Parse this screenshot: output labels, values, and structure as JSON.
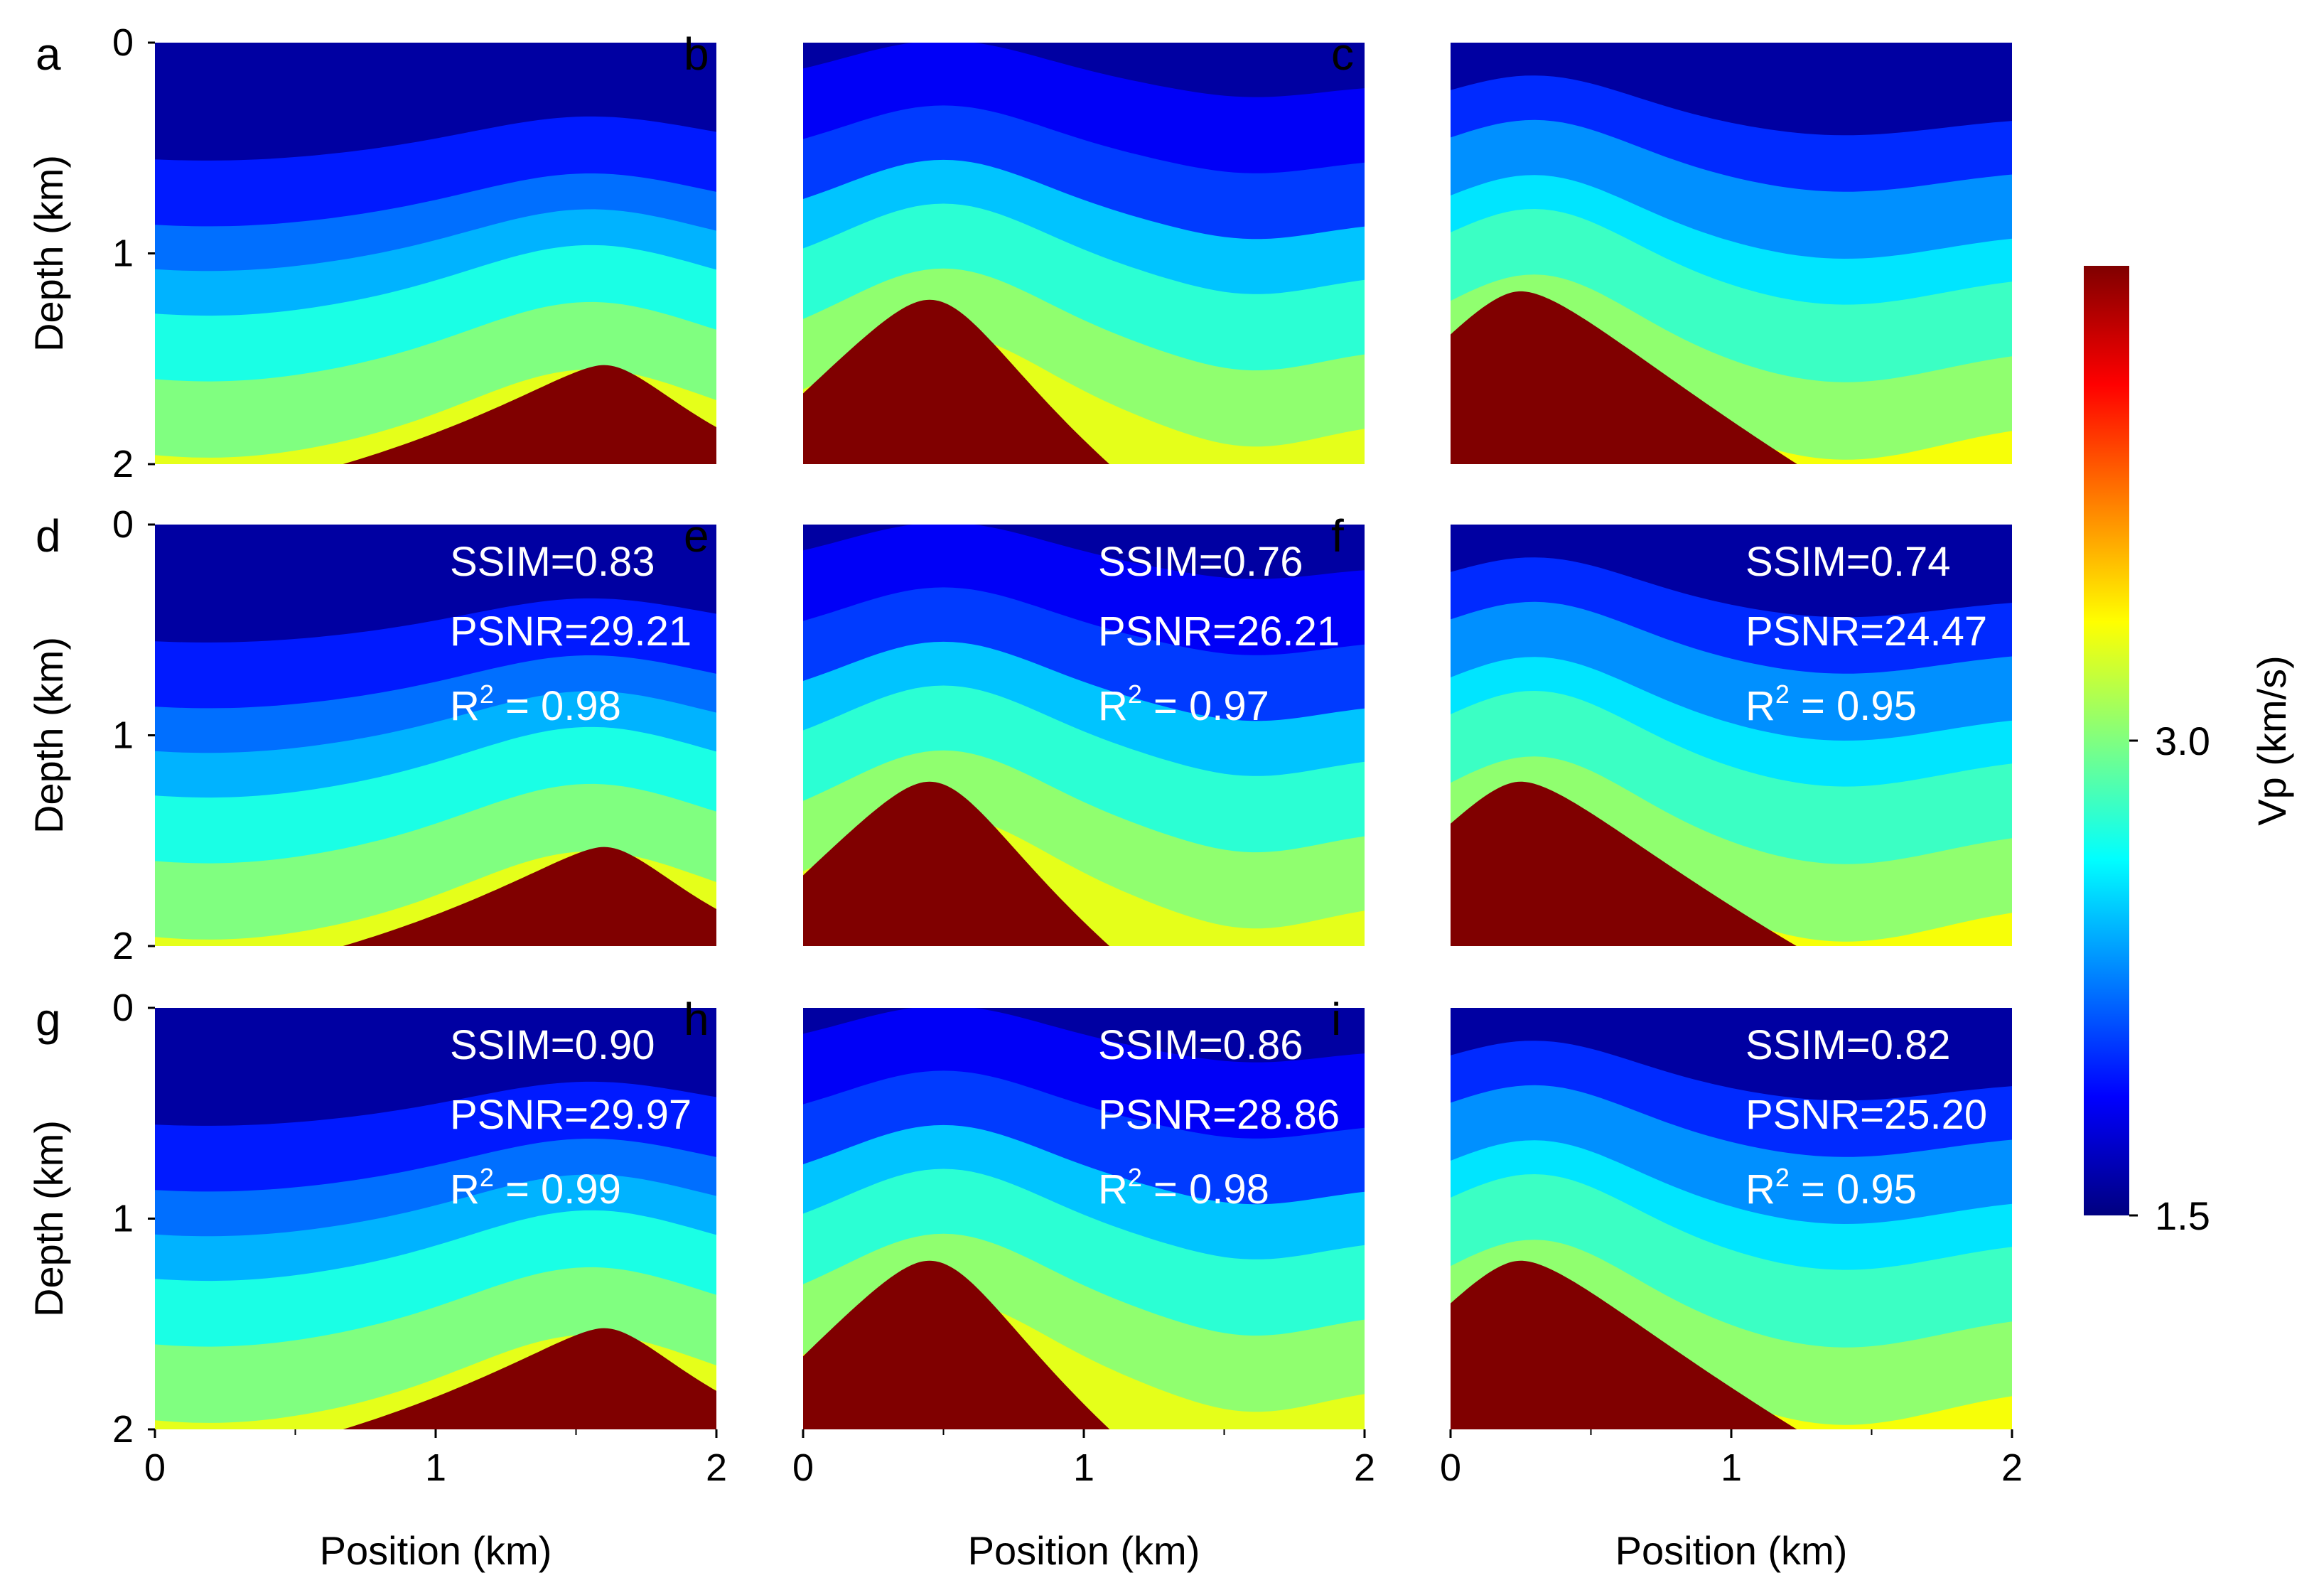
{
  "figure": {
    "description_type": "seismic velocity model panels",
    "x_axis_label": "Position (km)",
    "y_axis_label": "Depth (km)",
    "x_ticks": [
      "0",
      "1",
      "2"
    ],
    "y_ticks": [
      "0",
      "1",
      "2"
    ]
  },
  "colorbar": {
    "label": "Vp (km/s)",
    "min": 1.5,
    "max": 4.5,
    "tick_labels": [
      "3.0",
      "1.5"
    ],
    "colormap": "jet"
  },
  "chart_data": [
    {
      "type": "heatmap",
      "panel": "a",
      "xlim": [
        0,
        2
      ],
      "ylim": [
        0,
        2
      ],
      "xlabel": "",
      "ylabel": "Depth (km)",
      "role": "ground truth",
      "salt": {
        "peak_position_km": 1.6,
        "peak_depth_km": 1.53
      },
      "layers": [
        {
          "vp": 1.6,
          "top_km": 0.0
        },
        {
          "vp": 1.95,
          "top_km": 0.5
        },
        {
          "vp": 2.2,
          "top_km": 0.8
        },
        {
          "vp": 2.4,
          "top_km": 1.0
        },
        {
          "vp": 2.7,
          "top_km": 1.2
        },
        {
          "vp": 3.0,
          "top_km": 1.5
        },
        {
          "vp": 3.3,
          "top_km": 1.85
        }
      ],
      "metrics": null
    },
    {
      "type": "heatmap",
      "panel": "b",
      "xlim": [
        0,
        2
      ],
      "ylim": [
        0,
        2
      ],
      "xlabel": "",
      "ylabel": "",
      "role": "ground truth",
      "salt": {
        "peak_position_km": 0.45,
        "peak_depth_km": 1.22
      },
      "layers": [
        {
          "vp": 1.6,
          "top_km": 0.0
        },
        {
          "vp": 1.85,
          "top_km": 0.2
        },
        {
          "vp": 2.05,
          "top_km": 0.55
        },
        {
          "vp": 2.45,
          "top_km": 0.85
        },
        {
          "vp": 2.75,
          "top_km": 1.1
        },
        {
          "vp": 3.05,
          "top_km": 1.45
        },
        {
          "vp": 3.3,
          "top_km": 1.8
        }
      ],
      "metrics": null
    },
    {
      "type": "heatmap",
      "panel": "c",
      "xlim": [
        0,
        2
      ],
      "ylim": [
        0,
        2
      ],
      "xlabel": "",
      "ylabel": "",
      "role": "ground truth",
      "salt": {
        "peak_position_km": 0.25,
        "peak_depth_km": 1.18
      },
      "layers": [
        {
          "vp": 1.6,
          "top_km": 0.0
        },
        {
          "vp": 2.0,
          "top_km": 0.35
        },
        {
          "vp": 2.3,
          "top_km": 0.6
        },
        {
          "vp": 2.55,
          "top_km": 0.9
        },
        {
          "vp": 2.8,
          "top_km": 1.1
        },
        {
          "vp": 3.05,
          "top_km": 1.45
        },
        {
          "vp": 3.35,
          "top_km": 1.8
        }
      ],
      "metrics": null
    },
    {
      "type": "heatmap",
      "panel": "d",
      "xlim": [
        0,
        2
      ],
      "ylim": [
        0,
        2
      ],
      "xlabel": "",
      "ylabel": "Depth (km)",
      "role": "prediction",
      "salt": {
        "peak_position_km": 1.6,
        "peak_depth_km": 1.53
      },
      "layers": [
        {
          "vp": 1.6,
          "top_km": 0.0
        },
        {
          "vp": 1.95,
          "top_km": 0.5
        },
        {
          "vp": 2.2,
          "top_km": 0.8
        },
        {
          "vp": 2.4,
          "top_km": 1.0
        },
        {
          "vp": 2.7,
          "top_km": 1.2
        },
        {
          "vp": 3.0,
          "top_km": 1.5
        },
        {
          "vp": 3.3,
          "top_km": 1.85
        }
      ],
      "metrics": {
        "ssim": "SSIM=0.83",
        "psnr": "PSNR=29.21",
        "r2_prefix": "R",
        "r2_exp": "2",
        "r2_value": " = 0.98"
      }
    },
    {
      "type": "heatmap",
      "panel": "e",
      "xlim": [
        0,
        2
      ],
      "ylim": [
        0,
        2
      ],
      "xlabel": "",
      "ylabel": "",
      "role": "prediction",
      "salt": {
        "peak_position_km": 0.45,
        "peak_depth_km": 1.22
      },
      "layers": [
        {
          "vp": 1.6,
          "top_km": 0.0
        },
        {
          "vp": 1.85,
          "top_km": 0.2
        },
        {
          "vp": 2.05,
          "top_km": 0.55
        },
        {
          "vp": 2.45,
          "top_km": 0.85
        },
        {
          "vp": 2.75,
          "top_km": 1.1
        },
        {
          "vp": 3.05,
          "top_km": 1.45
        },
        {
          "vp": 3.3,
          "top_km": 1.8
        }
      ],
      "metrics": {
        "ssim": "SSIM=0.76",
        "psnr": "PSNR=26.21",
        "r2_prefix": "R",
        "r2_exp": "2",
        "r2_value": " = 0.97"
      }
    },
    {
      "type": "heatmap",
      "panel": "f",
      "xlim": [
        0,
        2
      ],
      "ylim": [
        0,
        2
      ],
      "xlabel": "",
      "ylabel": "",
      "role": "prediction",
      "salt": {
        "peak_position_km": 0.25,
        "peak_depth_km": 1.22
      },
      "layers": [
        {
          "vp": 1.6,
          "top_km": 0.0
        },
        {
          "vp": 2.0,
          "top_km": 0.35
        },
        {
          "vp": 2.3,
          "top_km": 0.6
        },
        {
          "vp": 2.55,
          "top_km": 0.9
        },
        {
          "vp": 2.8,
          "top_km": 1.1
        },
        {
          "vp": 3.05,
          "top_km": 1.45
        },
        {
          "vp": 3.35,
          "top_km": 1.8
        }
      ],
      "metrics": {
        "ssim": "SSIM=0.74",
        "psnr": "PSNR=24.47",
        "r2_prefix": "R",
        "r2_exp": "2",
        "r2_value": " = 0.95"
      }
    },
    {
      "type": "heatmap",
      "panel": "g",
      "xlim": [
        0,
        2
      ],
      "ylim": [
        0,
        2
      ],
      "xlabel": "Position (km)",
      "ylabel": "Depth (km)",
      "role": "prediction",
      "salt": {
        "peak_position_km": 1.6,
        "peak_depth_km": 1.52
      },
      "layers": [
        {
          "vp": 1.6,
          "top_km": 0.0
        },
        {
          "vp": 1.95,
          "top_km": 0.5
        },
        {
          "vp": 2.2,
          "top_km": 0.8
        },
        {
          "vp": 2.4,
          "top_km": 1.0
        },
        {
          "vp": 2.7,
          "top_km": 1.2
        },
        {
          "vp": 3.0,
          "top_km": 1.5
        },
        {
          "vp": 3.3,
          "top_km": 1.85
        }
      ],
      "metrics": {
        "ssim": "SSIM=0.90",
        "psnr": "PSNR=29.97",
        "r2_prefix": "R",
        "r2_exp": "2",
        "r2_value": " = 0.99"
      }
    },
    {
      "type": "heatmap",
      "panel": "h",
      "xlim": [
        0,
        2
      ],
      "ylim": [
        0,
        2
      ],
      "xlabel": "Position (km)",
      "ylabel": "",
      "role": "prediction",
      "salt": {
        "peak_position_km": 0.45,
        "peak_depth_km": 1.2
      },
      "layers": [
        {
          "vp": 1.6,
          "top_km": 0.0
        },
        {
          "vp": 1.85,
          "top_km": 0.2
        },
        {
          "vp": 2.05,
          "top_km": 0.55
        },
        {
          "vp": 2.45,
          "top_km": 0.85
        },
        {
          "vp": 2.75,
          "top_km": 1.1
        },
        {
          "vp": 3.05,
          "top_km": 1.45
        },
        {
          "vp": 3.3,
          "top_km": 1.8
        }
      ],
      "metrics": {
        "ssim": "SSIM=0.86",
        "psnr": "PSNR=28.86",
        "r2_prefix": "R",
        "r2_exp": "2",
        "r2_value": " = 0.98"
      }
    },
    {
      "type": "heatmap",
      "panel": "i",
      "xlim": [
        0,
        2
      ],
      "ylim": [
        0,
        2
      ],
      "xlabel": "Position (km)",
      "ylabel": "",
      "role": "prediction",
      "salt": {
        "peak_position_km": 0.25,
        "peak_depth_km": 1.2
      },
      "layers": [
        {
          "vp": 1.6,
          "top_km": 0.0
        },
        {
          "vp": 2.0,
          "top_km": 0.35
        },
        {
          "vp": 2.3,
          "top_km": 0.6
        },
        {
          "vp": 2.55,
          "top_km": 0.9
        },
        {
          "vp": 2.8,
          "top_km": 1.1
        },
        {
          "vp": 3.05,
          "top_km": 1.45
        },
        {
          "vp": 3.35,
          "top_km": 1.8
        }
      ],
      "metrics": {
        "ssim": "SSIM=0.82",
        "psnr": "PSNR=25.20",
        "r2_prefix": "R",
        "r2_exp": "2",
        "r2_value": " = 0.95"
      }
    }
  ]
}
